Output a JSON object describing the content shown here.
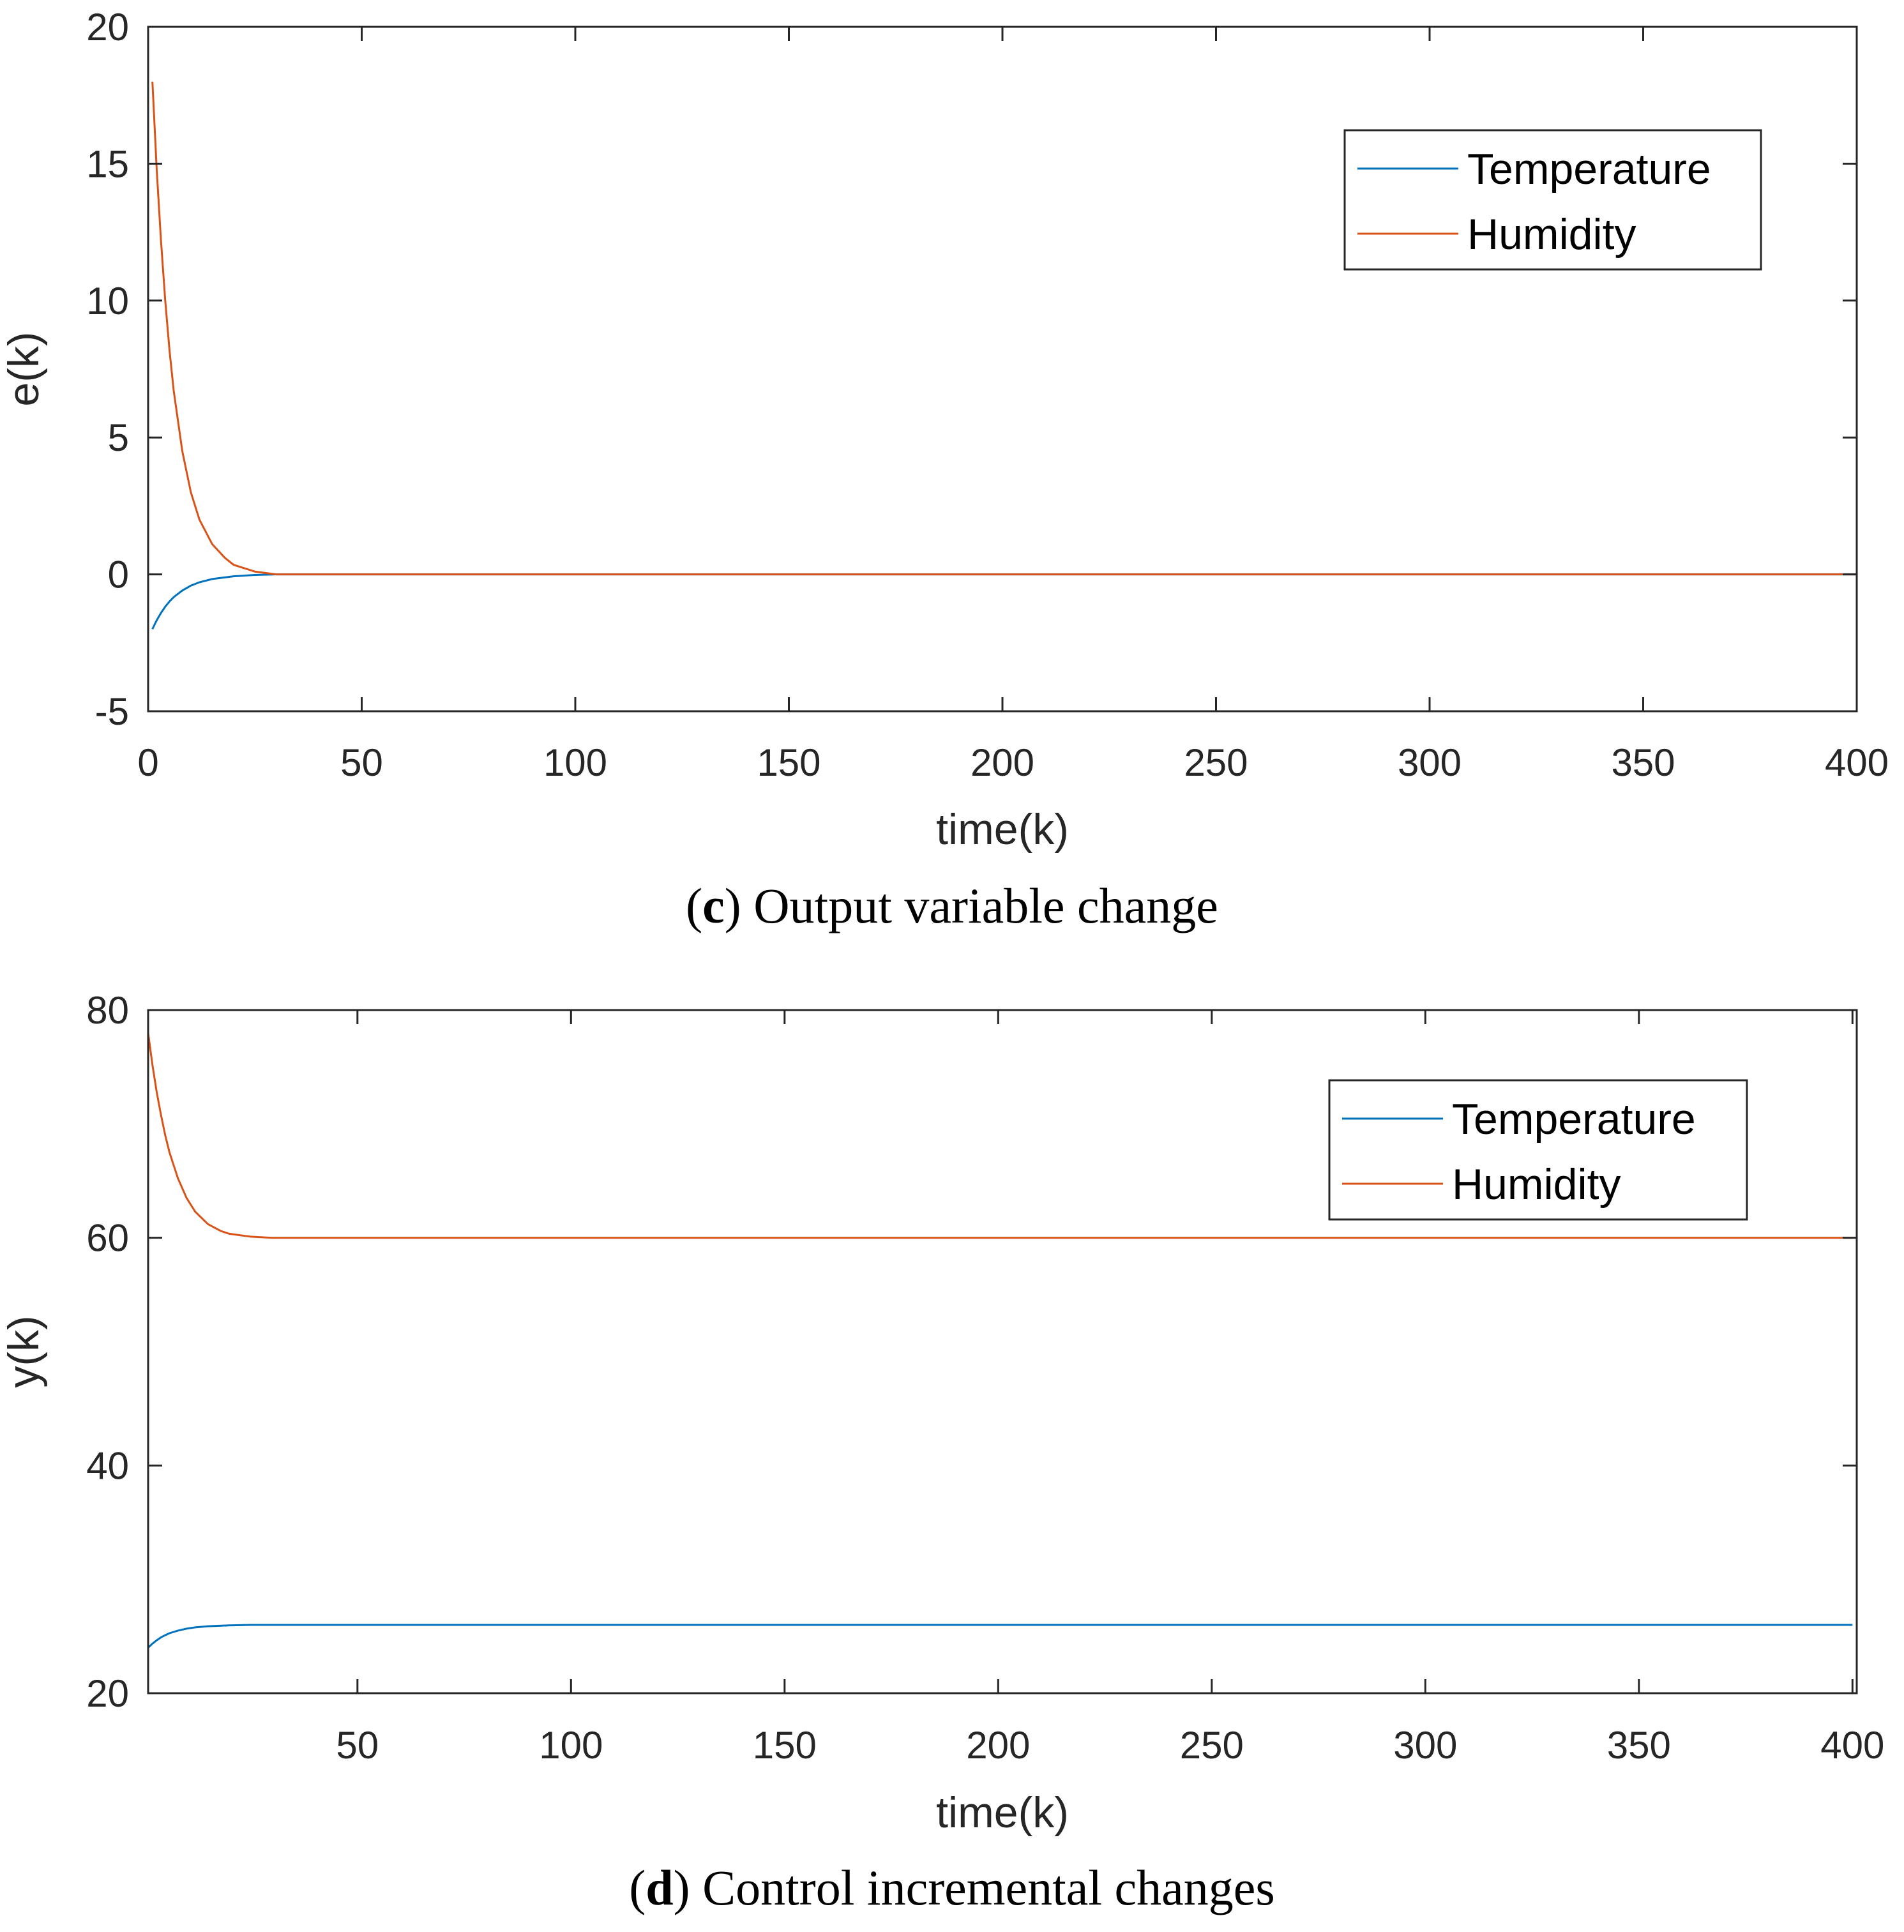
{
  "colors": {
    "temperature": "#0072BD",
    "humidity": "#D95319",
    "axis": "#262626"
  },
  "chart_data": [
    {
      "id": "c",
      "type": "line",
      "xlabel": "time(k)",
      "ylabel": "e(k)",
      "xlim": [
        0,
        400
      ],
      "ylim": [
        -5,
        20
      ],
      "xticks": [
        0,
        50,
        100,
        150,
        200,
        250,
        300,
        350,
        400
      ],
      "yticks": [
        -5,
        0,
        5,
        10,
        15,
        20
      ],
      "legend_position": "top-right",
      "grid": false,
      "series": [
        {
          "name": "Temperature",
          "color_key": "temperature",
          "x": [
            1,
            2,
            3,
            4,
            5,
            6,
            8,
            10,
            12,
            15,
            20,
            25,
            30,
            50,
            100,
            200,
            300,
            400
          ],
          "y": [
            -2.0,
            -1.68,
            -1.41,
            -1.18,
            -0.99,
            -0.83,
            -0.59,
            -0.41,
            -0.29,
            -0.17,
            -0.07,
            -0.02,
            0,
            0,
            0,
            0,
            0,
            0
          ]
        },
        {
          "name": "Humidity",
          "color_key": "humidity",
          "x": [
            1,
            2,
            3,
            4,
            5,
            6,
            8,
            10,
            12,
            15,
            18,
            20,
            25,
            30,
            50,
            100,
            200,
            300,
            400
          ],
          "y": [
            18.0,
            14.8,
            12.2,
            10.0,
            8.2,
            6.7,
            4.5,
            3.0,
            2.0,
            1.1,
            0.6,
            0.35,
            0.1,
            0,
            0,
            0,
            0,
            0,
            0
          ]
        }
      ],
      "caption": {
        "letter": "c",
        "text": "Output variable change"
      }
    },
    {
      "id": "d",
      "type": "line",
      "xlabel": "time(k)",
      "ylabel": "y(k)",
      "xlim": [
        1,
        401
      ],
      "ylim": [
        20,
        80
      ],
      "xticks": [
        50,
        100,
        150,
        200,
        250,
        300,
        350,
        400
      ],
      "yticks": [
        20,
        40,
        60,
        80
      ],
      "legend_position": "top-right",
      "grid": false,
      "series": [
        {
          "name": "Temperature",
          "color_key": "temperature",
          "x": [
            1,
            2,
            3,
            4,
            5,
            6,
            8,
            10,
            12,
            15,
            20,
            25,
            50,
            100,
            200,
            300,
            400
          ],
          "y": [
            24.0,
            24.35,
            24.65,
            24.9,
            25.1,
            25.27,
            25.5,
            25.67,
            25.78,
            25.88,
            25.96,
            26.0,
            26.0,
            26.0,
            26.0,
            26.0,
            26.0
          ]
        },
        {
          "name": "Humidity",
          "color_key": "humidity",
          "x": [
            1,
            2,
            3,
            4,
            5,
            6,
            8,
            10,
            12,
            15,
            18,
            20,
            25,
            30,
            50,
            100,
            200,
            300,
            400
          ],
          "y": [
            78.0,
            75.2,
            72.8,
            70.8,
            69.0,
            67.5,
            65.2,
            63.5,
            62.3,
            61.2,
            60.6,
            60.35,
            60.1,
            60.0,
            60.0,
            60.0,
            60.0,
            60.0,
            60.0
          ]
        }
      ],
      "caption": {
        "letter": "d",
        "text": "Control incremental changes"
      }
    }
  ]
}
